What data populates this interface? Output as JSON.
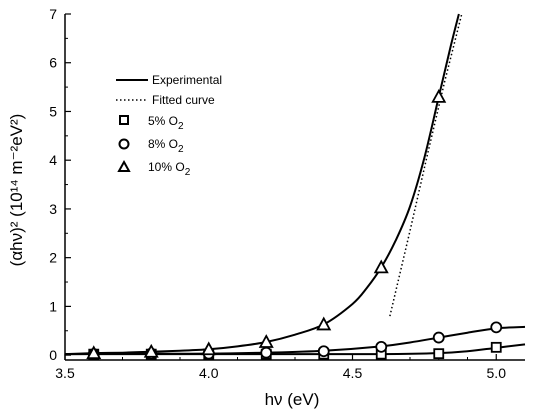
{
  "chart_data": {
    "type": "line",
    "xlabel": "hν (eV)",
    "ylabel": "(αhν)² (10¹⁴ m⁻²eV²)",
    "xlim": [
      3.5,
      5.1
    ],
    "ylim": [
      -0.1,
      7.0
    ],
    "x_ticks": [
      3.5,
      4.0,
      4.5,
      5.0
    ],
    "x_tick_labels": [
      "3.5",
      "4.0",
      "4.5",
      "5.0"
    ],
    "y_ticks": [
      0,
      1,
      2,
      3,
      4,
      5,
      6,
      7
    ],
    "y_tick_labels": [
      "0",
      "1",
      "2",
      "3",
      "4",
      "5",
      "6",
      "7"
    ],
    "grid": false,
    "legend_position": "upper-left",
    "legend": {
      "experimental": "Experimental",
      "fitted": "Fitted curve",
      "s5": "5% O",
      "s8": "8% O",
      "s10": "10% O",
      "subscript": "2"
    },
    "series": [
      {
        "name": "5% O2",
        "marker": "square",
        "markers": [
          [
            3.6,
            0.02
          ],
          [
            3.8,
            0.02
          ],
          [
            4.0,
            0.02
          ],
          [
            4.2,
            0.02
          ],
          [
            4.4,
            0.02
          ],
          [
            4.6,
            0.02
          ],
          [
            4.8,
            0.03
          ],
          [
            5.0,
            0.16
          ]
        ],
        "curve": [
          [
            3.5,
            0.02
          ],
          [
            3.8,
            0.02
          ],
          [
            4.2,
            0.02
          ],
          [
            4.6,
            0.02
          ],
          [
            4.8,
            0.04
          ],
          [
            4.9,
            0.08
          ],
          [
            5.0,
            0.15
          ],
          [
            5.1,
            0.22
          ]
        ]
      },
      {
        "name": "8% O2",
        "marker": "circle",
        "markers": [
          [
            3.6,
            0.02
          ],
          [
            3.8,
            0.03
          ],
          [
            4.0,
            0.03
          ],
          [
            4.2,
            0.05
          ],
          [
            4.4,
            0.08
          ],
          [
            4.6,
            0.17
          ],
          [
            4.8,
            0.36
          ],
          [
            5.0,
            0.57
          ]
        ],
        "curve": [
          [
            3.5,
            0.02
          ],
          [
            3.8,
            0.03
          ],
          [
            4.0,
            0.03
          ],
          [
            4.2,
            0.05
          ],
          [
            4.4,
            0.09
          ],
          [
            4.6,
            0.18
          ],
          [
            4.7,
            0.26
          ],
          [
            4.8,
            0.36
          ],
          [
            4.9,
            0.46
          ],
          [
            5.0,
            0.55
          ],
          [
            5.1,
            0.58
          ]
        ]
      },
      {
        "name": "10% O2",
        "marker": "triangle",
        "markers": [
          [
            3.6,
            0.04
          ],
          [
            3.8,
            0.07
          ],
          [
            4.0,
            0.12
          ],
          [
            4.2,
            0.27
          ],
          [
            4.4,
            0.63
          ],
          [
            4.6,
            1.8
          ],
          [
            4.8,
            5.3
          ]
        ],
        "curve": [
          [
            3.5,
            0.02
          ],
          [
            3.6,
            0.04
          ],
          [
            3.7,
            0.05
          ],
          [
            3.8,
            0.07
          ],
          [
            3.9,
            0.09
          ],
          [
            4.0,
            0.12
          ],
          [
            4.1,
            0.18
          ],
          [
            4.2,
            0.27
          ],
          [
            4.3,
            0.42
          ],
          [
            4.4,
            0.63
          ],
          [
            4.5,
            1.05
          ],
          [
            4.55,
            1.38
          ],
          [
            4.6,
            1.8
          ],
          [
            4.65,
            2.35
          ],
          [
            4.7,
            3.05
          ],
          [
            4.75,
            4.05
          ],
          [
            4.8,
            5.3
          ],
          [
            4.84,
            6.3
          ],
          [
            4.87,
            7.0
          ]
        ]
      }
    ],
    "fitted_curve": {
      "name": "Fitted curve (10% O2)",
      "points": [
        [
          4.63,
          0.8
        ],
        [
          4.7,
          2.55
        ],
        [
          4.76,
          4.1
        ],
        [
          4.82,
          5.6
        ],
        [
          4.88,
          7.0
        ]
      ]
    }
  }
}
